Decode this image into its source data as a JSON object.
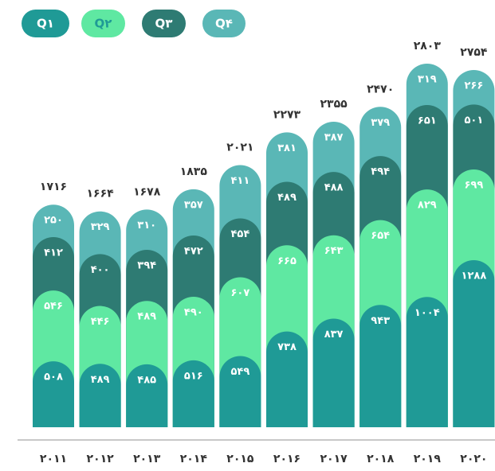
{
  "chart_data": {
    "type": "stacked_bar",
    "categories": [
      "۲۰۱۱",
      "۲۰۱۲",
      "۲۰۱۳",
      "۲۰۱۴",
      "۲۰۱۵",
      "۲۰۱۶",
      "۲۰۱۷",
      "۲۰۱۸",
      "۲۰۱۹",
      "۲۰۲۰"
    ],
    "series": [
      {
        "name": "Q۱",
        "color": "#1f9a96",
        "values": [
          508,
          489,
          485,
          516,
          549,
          738,
          837,
          943,
          1004,
          1288
        ],
        "value_labels": [
          "۵۰۸",
          "۴۸۹",
          "۴۸۵",
          "۵۱۶",
          "۵۴۹",
          "۷۳۸",
          "۸۳۷",
          "۹۴۳",
          "۱۰۰۴",
          "۱۲۸۸"
        ]
      },
      {
        "name": "Q۲",
        "color": "#5fe8a2",
        "values": [
          546,
          446,
          489,
          490,
          607,
          665,
          643,
          654,
          829,
          699
        ],
        "value_labels": [
          "۵۴۶",
          "۴۴۶",
          "۴۸۹",
          "۴۹۰",
          "۶۰۷",
          "۶۶۵",
          "۶۴۳",
          "۶۵۴",
          "۸۲۹",
          "۶۹۹"
        ]
      },
      {
        "name": "Q۳",
        "color": "#2e7b73",
        "values": [
          412,
          400,
          394,
          472,
          454,
          489,
          488,
          494,
          651,
          501
        ],
        "value_labels": [
          "۴۱۲",
          "۴۰۰",
          "۳۹۴",
          "۴۷۲",
          "۴۵۴",
          "۴۸۹",
          "۴۸۸",
          "۴۹۴",
          "۶۵۱",
          "۵۰۱"
        ]
      },
      {
        "name": "Q۴",
        "color": "#5ab7b6",
        "values": [
          250,
          329,
          310,
          357,
          411,
          381,
          387,
          379,
          319,
          266
        ],
        "value_labels": [
          "۲۵۰",
          "۳۲۹",
          "۳۱۰",
          "۳۵۷",
          "۴۱۱",
          "۳۸۱",
          "۳۸۷",
          "۳۷۹",
          "۳۱۹",
          "۲۶۶"
        ]
      }
    ],
    "totals": [
      1716,
      1664,
      1678,
      1835,
      2021,
      2273,
      2355,
      2470,
      2803,
      2754
    ],
    "total_labels": [
      "۱۷۱۶",
      "۱۶۶۴",
      "۱۶۷۸",
      "۱۸۳۵",
      "۲۰۲۱",
      "۲۲۷۳",
      "۲۳۵۵",
      "۲۴۷۰",
      "۲۸۰۳",
      "۲۷۵۴"
    ]
  }
}
